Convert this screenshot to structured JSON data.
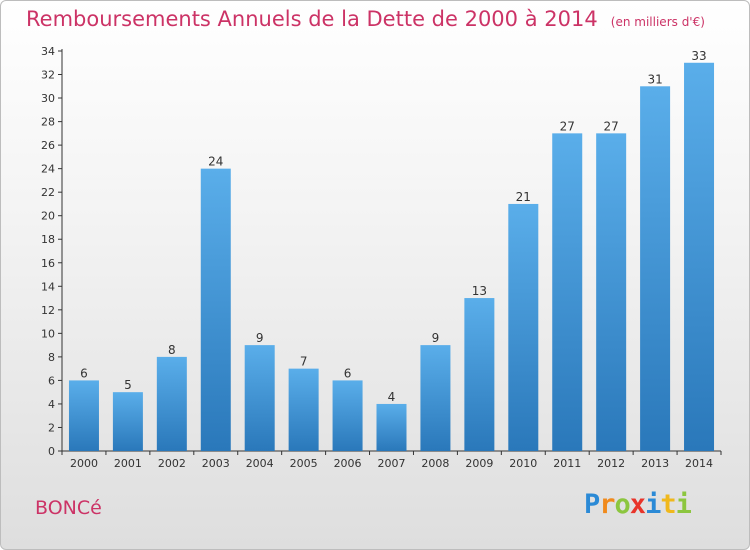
{
  "chart_data": {
    "type": "bar",
    "title": "Remboursements Annuels de la Dette de 2000 à 2014",
    "subtitle": "(en milliers d'€)",
    "categories": [
      "2000",
      "2001",
      "2002",
      "2003",
      "2004",
      "2005",
      "2006",
      "2007",
      "2008",
      "2009",
      "2010",
      "2011",
      "2012",
      "2013",
      "2014"
    ],
    "values": [
      6,
      5,
      8,
      24,
      9,
      7,
      6,
      4,
      9,
      13,
      21,
      27,
      27,
      31,
      33
    ],
    "ylim": [
      0,
      34
    ],
    "yticks": [
      0,
      2,
      4,
      6,
      8,
      10,
      12,
      14,
      16,
      18,
      20,
      22,
      24,
      26,
      28,
      30,
      32,
      34
    ],
    "grid": false,
    "bar_color_top": "#5aaeea",
    "bar_color_bottom": "#2a78ba"
  },
  "commune": "BONCé",
  "logo": {
    "letters": [
      {
        "ch": "P",
        "color": "#2b8ad6"
      },
      {
        "ch": "r",
        "color": "#f08a1c"
      },
      {
        "ch": "o",
        "color": "#8cc63f"
      },
      {
        "ch": "x",
        "color": "#e8342a"
      },
      {
        "ch": "i",
        "color": "#2b8ad6"
      },
      {
        "ch": "t",
        "color": "#f0b81c"
      },
      {
        "ch": "i",
        "color": "#8cc63f"
      }
    ]
  }
}
